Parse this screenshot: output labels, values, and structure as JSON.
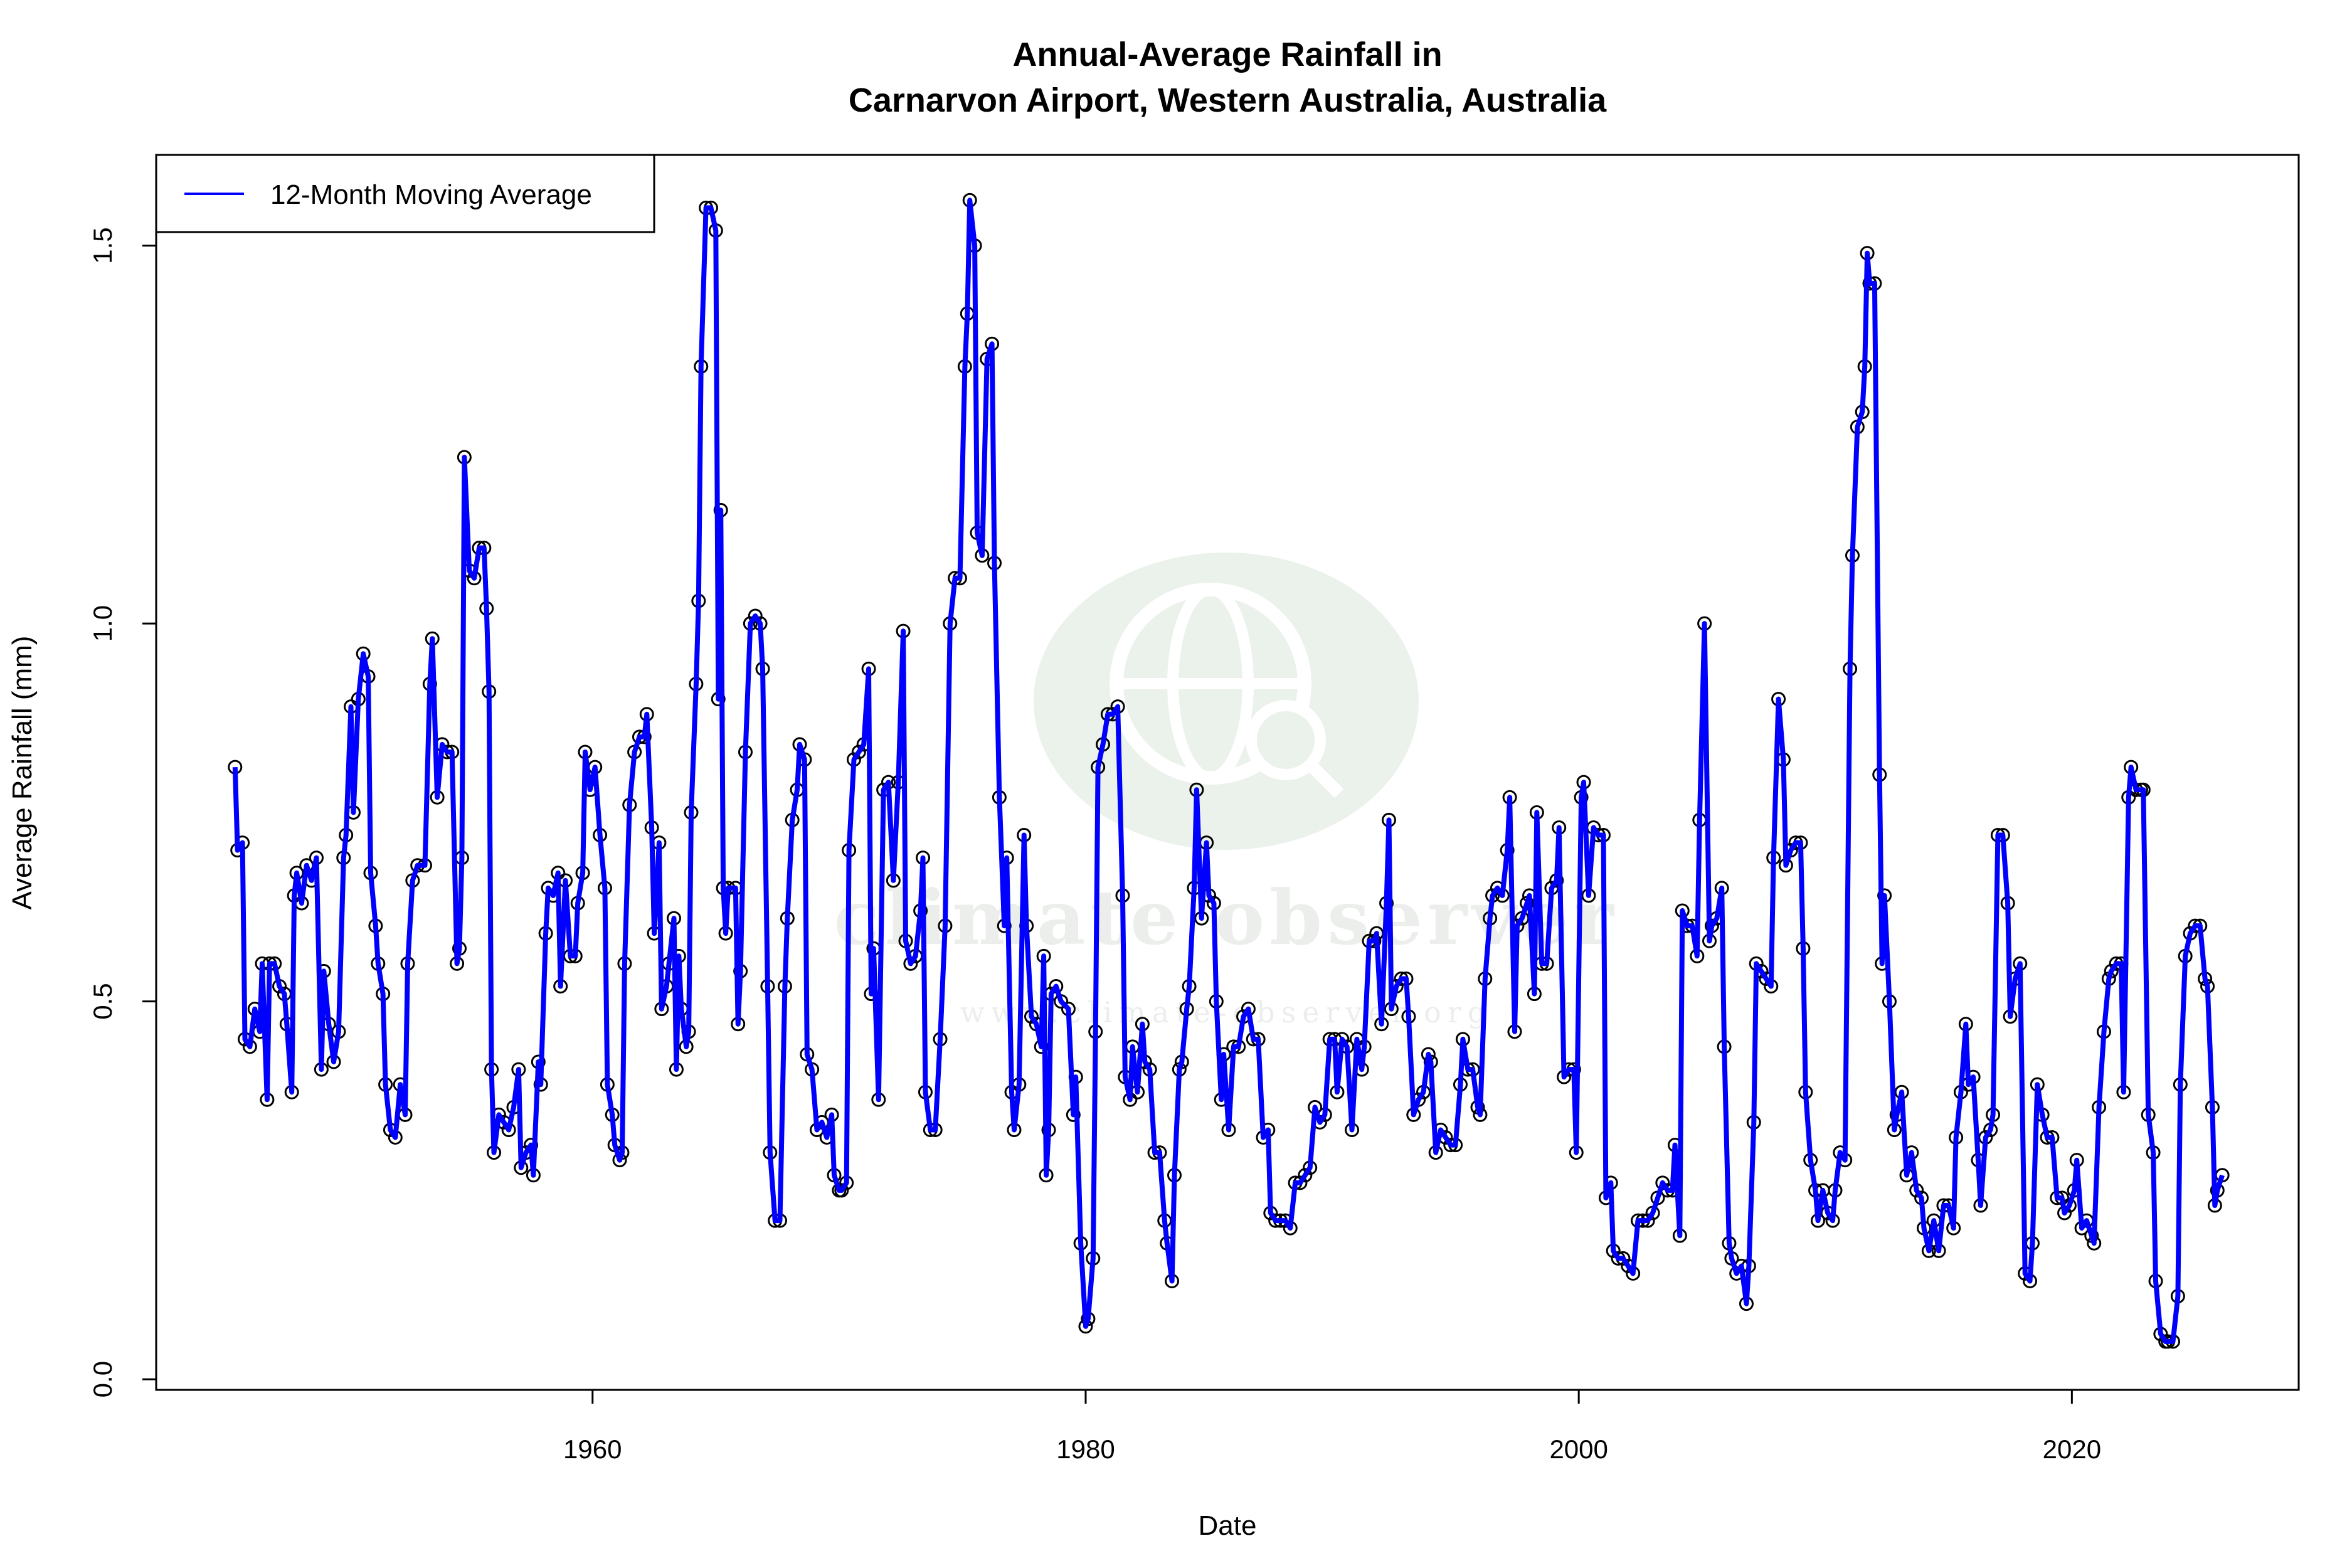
{
  "chart_data": {
    "type": "line",
    "title": "Annual-Average Rainfall in",
    "subtitle": "Carnarvon Airport, Western Australia, Australia",
    "xlabel": "Date",
    "ylabel": "Average Rainfall (mm)",
    "xlim": [
      1942.3,
      2029.2
    ],
    "ylim": [
      -0.014,
      1.62
    ],
    "xticks": [
      1960,
      1980,
      2000,
      2020
    ],
    "xtick_labels": [
      "1960",
      "1980",
      "2000",
      "2020"
    ],
    "yticks": [
      0,
      0.5,
      1.0,
      1.5
    ],
    "ytick_labels": [
      "0.0",
      "0.5",
      "1.0",
      "1.5"
    ],
    "grid": false,
    "legend_position": "top-left",
    "series": [
      {
        "name": "12-Month Moving Average",
        "color": "#0000ff",
        "marker_color": "#000000",
        "x": [
          1945.5,
          1945.6,
          1945.8,
          1945.9,
          1946.1,
          1946.3,
          1946.5,
          1946.6,
          1946.8,
          1946.9,
          1947.1,
          1947.3,
          1947.5,
          1947.6,
          1947.8,
          1947.9,
          1948.0,
          1948.2,
          1948.4,
          1948.6,
          1948.8,
          1949.0,
          1949.1,
          1949.3,
          1949.5,
          1949.7,
          1949.9,
          1950.0,
          1950.2,
          1950.3,
          1950.5,
          1950.7,
          1950.9,
          1951.0,
          1951.2,
          1951.3,
          1951.5,
          1951.6,
          1951.8,
          1952.0,
          1952.2,
          1952.4,
          1952.5,
          1952.7,
          1952.9,
          1953.2,
          1953.4,
          1953.5,
          1953.7,
          1953.9,
          1954.1,
          1954.3,
          1954.5,
          1954.6,
          1954.7,
          1954.8,
          1955.0,
          1955.2,
          1955.4,
          1955.6,
          1955.7,
          1955.8,
          1955.9,
          1956.0,
          1956.2,
          1956.4,
          1956.6,
          1956.8,
          1957.0,
          1957.1,
          1957.3,
          1957.5,
          1957.6,
          1957.8,
          1957.9,
          1958.1,
          1958.2,
          1958.4,
          1958.6,
          1958.7,
          1958.9,
          1959.1,
          1959.3,
          1959.4,
          1959.6,
          1959.7,
          1959.9,
          1960.1,
          1960.3,
          1960.5,
          1960.6,
          1960.8,
          1960.9,
          1961.1,
          1961.2,
          1961.3,
          1961.5,
          1961.7,
          1961.9,
          1962.1,
          1962.2,
          1962.4,
          1962.5,
          1962.7,
          1962.8,
          1963.0,
          1963.1,
          1963.3,
          1963.4,
          1963.5,
          1963.6,
          1963.8,
          1963.9,
          1964.0,
          1964.2,
          1964.3,
          1964.4,
          1964.6,
          1964.8,
          1965.0,
          1965.1,
          1965.2,
          1965.3,
          1965.4,
          1965.5,
          1965.8,
          1965.9,
          1966.0,
          1966.2,
          1966.4,
          1966.6,
          1966.8,
          1966.9,
          1967.1,
          1967.2,
          1967.4,
          1967.6,
          1967.8,
          1967.9,
          1968.1,
          1968.3,
          1968.4,
          1968.6,
          1968.7,
          1968.9,
          1969.1,
          1969.3,
          1969.5,
          1969.7,
          1969.8,
          1970.0,
          1970.1,
          1970.3,
          1970.4,
          1970.6,
          1970.8,
          1971.0,
          1971.2,
          1971.3,
          1971.4,
          1971.6,
          1971.8,
          1972.0,
          1972.2,
          1972.4,
          1972.6,
          1972.7,
          1972.9,
          1973.1,
          1973.3,
          1973.4,
          1973.5,
          1973.7,
          1973.9,
          1974.1,
          1974.3,
          1974.5,
          1974.7,
          1974.9,
          1975.1,
          1975.2,
          1975.3,
          1975.5,
          1975.6,
          1975.8,
          1976.0,
          1976.2,
          1976.3,
          1976.5,
          1976.7,
          1976.8,
          1977.0,
          1977.1,
          1977.3,
          1977.5,
          1977.6,
          1977.8,
          1978.0,
          1978.2,
          1978.3,
          1978.4,
          1978.5,
          1978.6,
          1978.8,
          1979.0,
          1979.3,
          1979.5,
          1979.6,
          1979.8,
          1980.0,
          1980.1,
          1980.3,
          1980.4,
          1980.5,
          1980.7,
          1980.9,
          1981.1,
          1981.3,
          1981.5,
          1981.6,
          1981.8,
          1981.9,
          1982.1,
          1982.3,
          1982.4,
          1982.6,
          1982.8,
          1983.0,
          1983.2,
          1983.3,
          1983.5,
          1983.6,
          1983.8,
          1983.9,
          1984.1,
          1984.2,
          1984.4,
          1984.5,
          1984.7,
          1984.9,
          1985.0,
          1985.2,
          1985.3,
          1985.5,
          1985.6,
          1985.8,
          1986.0,
          1986.2,
          1986.4,
          1986.6,
          1986.8,
          1987.0,
          1987.2,
          1987.4,
          1987.5,
          1987.7,
          1987.9,
          1988.1,
          1988.3,
          1988.5,
          1988.7,
          1988.9,
          1989.1,
          1989.3,
          1989.5,
          1989.7,
          1989.9,
          1990.1,
          1990.2,
          1990.4,
          1990.6,
          1990.8,
          1991.0,
          1991.2,
          1991.3,
          1991.5,
          1991.7,
          1991.8,
          1992.0,
          1992.2,
          1992.3,
          1992.4,
          1992.6,
          1992.8,
          1993.0,
          1993.1,
          1993.3,
          1993.5,
          1993.7,
          1993.9,
          1994.0,
          1994.2,
          1994.4,
          1994.6,
          1994.8,
          1995.0,
          1995.2,
          1995.3,
          1995.5,
          1995.7,
          1995.9,
          1996.0,
          1996.2,
          1996.4,
          1996.5,
          1996.7,
          1996.9,
          1997.1,
          1997.2,
          1997.4,
          1997.5,
          1997.7,
          1997.9,
          1998.0,
          1998.2,
          1998.3,
          1998.5,
          1998.7,
          1998.9,
          1999.1,
          1999.2,
          1999.4,
          1999.6,
          1999.8,
          1999.9,
          2000.1,
          2000.2,
          2000.4,
          2000.6,
          2000.8,
          2001.0,
          2001.1,
          2001.3,
          2001.4,
          2001.6,
          2001.8,
          2002.0,
          2002.2,
          2002.4,
          2002.6,
          2002.8,
          2003.0,
          2003.2,
          2003.4,
          2003.6,
          2003.8,
          2003.9,
          2004.1,
          2004.2,
          2004.4,
          2004.6,
          2004.8,
          2004.9,
          2005.1,
          2005.3,
          2005.4,
          2005.6,
          2005.8,
          2005.9,
          2006.1,
          2006.2,
          2006.4,
          2006.6,
          2006.8,
          2006.9,
          2007.1,
          2007.2,
          2007.4,
          2007.6,
          2007.8,
          2007.9,
          2008.1,
          2008.3,
          2008.4,
          2008.6,
          2008.8,
          2009.0,
          2009.1,
          2009.2,
          2009.4,
          2009.6,
          2009.7,
          2009.9,
          2010.1,
          2010.3,
          2010.4,
          2010.6,
          2010.8,
          2011.0,
          2011.1,
          2011.3,
          2011.5,
          2011.6,
          2011.7,
          2011.8,
          2012.0,
          2012.2,
          2012.3,
          2012.4,
          2012.6,
          2012.8,
          2012.9,
          2013.1,
          2013.3,
          2013.5,
          2013.7,
          2013.9,
          2014.0,
          2014.2,
          2014.4,
          2014.6,
          2014.8,
          2015.0,
          2015.2,
          2015.3,
          2015.5,
          2015.7,
          2015.8,
          2016.0,
          2016.2,
          2016.3,
          2016.5,
          2016.7,
          2016.8,
          2017.0,
          2017.2,
          2017.4,
          2017.5,
          2017.7,
          2017.9,
          2018.1,
          2018.3,
          2018.4,
          2018.6,
          2018.8,
          2019.0,
          2019.2,
          2019.4,
          2019.6,
          2019.7,
          2019.9,
          2020.1,
          2020.2,
          2020.4,
          2020.6,
          2020.8,
          2020.9,
          2021.1,
          2021.3,
          2021.5,
          2021.6,
          2021.8,
          2022.0,
          2022.1,
          2022.3,
          2022.4,
          2022.6,
          2022.8,
          2022.9,
          2023.1,
          2023.3,
          2023.4,
          2023.6,
          2023.8,
          2023.9,
          2024.1,
          2024.3,
          2024.4,
          2024.6,
          2024.8,
          2025.0,
          2025.2,
          2025.4,
          2025.5,
          2025.7,
          2025.8,
          2025.9,
          2026.1
        ],
        "y": [
          0.81,
          0.7,
          0.71,
          0.45,
          0.44,
          0.49,
          0.46,
          0.55,
          0.37,
          0.55,
          0.55,
          0.52,
          0.51,
          0.47,
          0.38,
          0.64,
          0.67,
          0.63,
          0.68,
          0.66,
          0.69,
          0.41,
          0.54,
          0.47,
          0.42,
          0.46,
          0.69,
          0.72,
          0.89,
          0.75,
          0.9,
          0.96,
          0.93,
          0.67,
          0.6,
          0.55,
          0.51,
          0.39,
          0.33,
          0.32,
          0.39,
          0.35,
          0.55,
          0.66,
          0.68,
          0.68,
          0.92,
          0.98,
          0.77,
          0.84,
          0.83,
          0.83,
          0.55,
          0.57,
          0.69,
          1.22,
          1.07,
          1.06,
          1.1,
          1.1,
          1.02,
          0.91,
          0.41,
          0.3,
          0.35,
          0.34,
          0.33,
          0.36,
          0.41,
          0.28,
          0.3,
          0.31,
          0.27,
          0.42,
          0.39,
          0.59,
          0.65,
          0.64,
          0.67,
          0.52,
          0.66,
          0.56,
          0.56,
          0.63,
          0.67,
          0.83,
          0.78,
          0.81,
          0.72,
          0.65,
          0.39,
          0.35,
          0.31,
          0.29,
          0.3,
          0.55,
          0.76,
          0.83,
          0.85,
          0.85,
          0.88,
          0.73,
          0.59,
          0.71,
          0.49,
          0.52,
          0.55,
          0.61,
          0.41,
          0.56,
          0.49,
          0.44,
          0.46,
          0.75,
          0.92,
          1.03,
          1.34,
          1.55,
          1.55,
          1.52,
          0.9,
          1.15,
          0.65,
          0.59,
          0.65,
          0.65,
          0.47,
          0.54,
          0.83,
          1.0,
          1.01,
          1.0,
          0.94,
          0.52,
          0.3,
          0.21,
          0.21,
          0.52,
          0.61,
          0.74,
          0.78,
          0.84,
          0.82,
          0.43,
          0.41,
          0.33,
          0.34,
          0.32,
          0.35,
          0.27,
          0.25,
          0.25,
          0.26,
          0.7,
          0.82,
          0.83,
          0.84,
          0.94,
          0.51,
          0.57,
          0.37,
          0.78,
          0.79,
          0.66,
          0.79,
          0.99,
          0.58,
          0.55,
          0.56,
          0.62,
          0.69,
          0.38,
          0.33,
          0.33,
          0.45,
          0.6,
          1.0,
          1.06,
          1.06,
          1.34,
          1.41,
          1.56,
          1.5,
          1.12,
          1.09,
          1.35,
          1.37,
          1.08,
          0.77,
          0.6,
          0.69,
          0.38,
          0.33,
          0.39,
          0.72,
          0.6,
          0.48,
          0.47,
          0.44,
          0.56,
          0.27,
          0.33,
          0.51,
          0.52,
          0.5,
          0.49,
          0.35,
          0.4,
          0.18,
          0.07,
          0.08,
          0.16,
          0.46,
          0.81,
          0.84,
          0.88,
          0.88,
          0.89,
          0.64,
          0.4,
          0.37,
          0.44,
          0.38,
          0.47,
          0.42,
          0.41,
          0.3,
          0.3,
          0.21,
          0.18,
          0.13,
          0.27,
          0.41,
          0.42,
          0.49,
          0.52,
          0.65,
          0.78,
          0.61,
          0.71,
          0.64,
          0.63,
          0.5,
          0.37,
          0.43,
          0.33,
          0.44,
          0.44,
          0.48,
          0.49,
          0.45,
          0.45,
          0.32,
          0.33,
          0.22,
          0.21,
          0.21,
          0.21,
          0.2,
          0.26,
          0.26,
          0.27,
          0.28,
          0.36,
          0.34,
          0.35,
          0.45,
          0.45,
          0.38,
          0.45,
          0.44,
          0.33,
          0.45,
          0.41,
          0.44,
          0.58,
          0.58,
          0.59,
          0.47,
          0.63,
          0.74,
          0.49,
          0.52,
          0.53,
          0.53,
          0.48,
          0.35,
          0.37,
          0.38,
          0.43,
          0.42,
          0.3,
          0.33,
          0.32,
          0.31,
          0.31,
          0.39,
          0.45,
          0.41,
          0.41,
          0.36,
          0.35,
          0.53,
          0.61,
          0.64,
          0.65,
          0.64,
          0.7,
          0.77,
          0.46,
          0.6,
          0.61,
          0.63,
          0.64,
          0.51,
          0.75,
          0.55,
          0.55,
          0.65,
          0.66,
          0.73,
          0.4,
          0.41,
          0.41,
          0.3,
          0.77,
          0.79,
          0.64,
          0.73,
          0.72,
          0.72,
          0.24,
          0.26,
          0.17,
          0.16,
          0.16,
          0.15,
          0.14,
          0.21,
          0.21,
          0.21,
          0.22,
          0.24,
          0.26,
          0.25,
          0.25,
          0.31,
          0.19,
          0.62,
          0.6,
          0.6,
          0.56,
          0.74,
          1.0,
          0.58,
          0.6,
          0.61,
          0.65,
          0.44,
          0.18,
          0.16,
          0.14,
          0.15,
          0.1,
          0.15,
          0.34,
          0.55,
          0.54,
          0.53,
          0.52,
          0.69,
          0.9,
          0.82,
          0.68,
          0.7,
          0.71,
          0.71,
          0.57,
          0.38,
          0.29,
          0.25,
          0.21,
          0.25,
          0.22,
          0.21,
          0.25,
          0.3,
          0.29,
          0.94,
          1.09,
          1.26,
          1.28,
          1.34,
          1.49,
          1.45,
          1.45,
          0.8,
          0.55,
          0.64,
          0.5,
          0.33,
          0.35,
          0.38,
          0.27,
          0.3,
          0.25,
          0.24,
          0.2,
          0.17,
          0.21,
          0.17,
          0.23,
          0.23,
          0.2,
          0.32,
          0.38,
          0.47,
          0.39,
          0.4,
          0.29,
          0.23,
          0.32,
          0.33,
          0.35,
          0.72,
          0.72,
          0.63,
          0.48,
          0.53,
          0.55,
          0.14,
          0.13,
          0.18,
          0.39,
          0.35,
          0.32,
          0.32,
          0.24,
          0.24,
          0.22,
          0.23,
          0.25,
          0.29,
          0.2,
          0.21,
          0.19,
          0.18,
          0.36,
          0.46,
          0.53,
          0.54,
          0.55,
          0.55,
          0.38,
          0.77,
          0.81,
          0.78,
          0.78,
          0.78,
          0.35,
          0.3,
          0.13,
          0.06,
          0.05,
          0.05,
          0.05,
          0.11,
          0.39,
          0.56,
          0.59,
          0.6,
          0.6,
          0.53,
          0.52,
          0.36,
          0.23,
          0.25,
          0.27
        ]
      }
    ]
  },
  "watermark": {
    "text": "climate observer",
    "url": "www.climate-observer.org",
    "color": "#e8efe8"
  }
}
